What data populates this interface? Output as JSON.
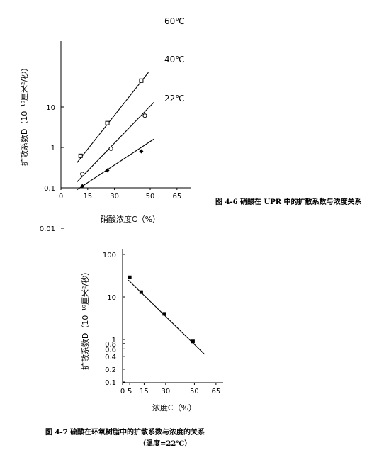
{
  "chart_data": [
    {
      "type": "scatter",
      "title": "",
      "caption": "图 4-6  硝酸在 UPR 中的扩散系数与浓度关系",
      "xlabel": "硝酸浓度C（%）",
      "ylabel": "扩散系数D（10⁻¹⁰厘米²/秒）",
      "y_scale": "log",
      "xlim": [
        0,
        73
      ],
      "ylim": [
        0.01,
        50
      ],
      "x_ticks": [
        "0",
        "15",
        "30",
        "50",
        "65"
      ],
      "y_ticks": [
        "0.01",
        "0.1",
        "1",
        "10"
      ],
      "series": [
        {
          "name": "60℃",
          "marker": "square",
          "points": [
            [
              11,
              0.62
            ],
            [
              26,
              4.0
            ],
            [
              45,
              45
            ]
          ],
          "fit": [
            [
              9,
              0.42
            ],
            [
              49,
              72
            ]
          ]
        },
        {
          "name": "40℃",
          "marker": "circle",
          "points": [
            [
              12,
              0.22
            ],
            [
              28,
              0.93
            ],
            [
              47,
              6.1
            ]
          ],
          "fit": [
            [
              9,
              0.14
            ],
            [
              52,
              13
            ]
          ]
        },
        {
          "name": "22℃",
          "marker": "diamond",
          "points": [
            [
              12,
              0.11
            ],
            [
              26,
              0.27
            ],
            [
              45,
              0.8
            ]
          ],
          "fit": [
            [
              9,
              0.09
            ],
            [
              52,
              1.6
            ]
          ]
        }
      ]
    },
    {
      "type": "scatter",
      "title": "",
      "caption": "图 4-7  硫酸在环氧树脂中的扩散系数与浓度的关系",
      "caption2": "（温度=22℃）",
      "xlabel": "浓度C（%）",
      "ylabel": "扩散系数D（10⁻¹⁰厘米²/秒）",
      "y_scale": "log",
      "xlim": [
        0,
        70
      ],
      "ylim": [
        0.1,
        100
      ],
      "x_ticks": [
        "0",
        "5",
        "15",
        "30",
        "50",
        "65"
      ],
      "y_ticks": [
        "0.1",
        "0.2",
        "0.4",
        "0.6",
        "0.8",
        "1",
        "10",
        "100"
      ],
      "series": [
        {
          "name": "",
          "marker": "square",
          "points": [
            [
              5,
              29
            ],
            [
              13,
              13
            ],
            [
              29,
              4.0
            ],
            [
              49,
              0.9
            ]
          ],
          "fit": [
            [
              4,
              25
            ],
            [
              57,
              0.45
            ]
          ]
        }
      ]
    }
  ]
}
